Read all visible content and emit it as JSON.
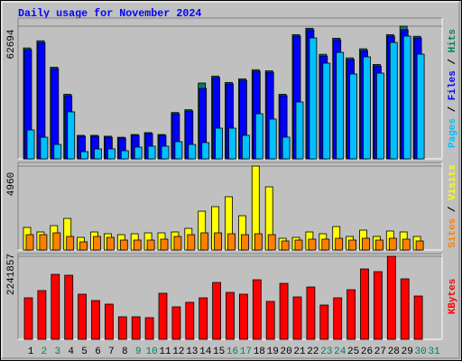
{
  "title": "Daily usage for November 2024",
  "legend_separator": " / ",
  "chart_data": [
    {
      "type": "bar",
      "ylim": [
        0,
        62694
      ],
      "yticks": [
        62694
      ],
      "grid": true,
      "series": [
        {
          "name": "Hits",
          "color": "#00805c",
          "values": [
            52400,
            55800,
            43300,
            30500,
            11100,
            11100,
            10700,
            10200,
            11500,
            12400,
            11500,
            21900,
            23200,
            35830,
            39100,
            36100,
            37800,
            42100,
            41600,
            30500,
            58700,
            61700,
            49400,
            57000,
            47700,
            52000,
            44600,
            58700,
            62694,
            57900,
            null
          ]
        },
        {
          "name": "Files",
          "color": "#0000ff",
          "values": [
            51600,
            55000,
            42650,
            29850,
            10660,
            10660,
            10240,
            9800,
            11100,
            11940,
            11100,
            21300,
            22600,
            33270,
            38400,
            35400,
            37100,
            41370,
            40900,
            29850,
            58000,
            61000,
            48600,
            56300,
            46900,
            51200,
            43900,
            58000,
            61000,
            57150,
            null
          ]
        },
        {
          "name": "Pages",
          "color": "#00c0ff",
          "values": [
            13650,
            10200,
            6800,
            22200,
            3400,
            4700,
            4700,
            3840,
            5540,
            5970,
            5970,
            8100,
            6800,
            7680,
            14500,
            14500,
            11100,
            21300,
            18770,
            10240,
            26870,
            57150,
            45200,
            50300,
            40100,
            48200,
            40500,
            55000,
            58000,
            49470,
            null
          ]
        }
      ]
    },
    {
      "type": "bar",
      "ylim": [
        0,
        4960
      ],
      "yticks": [
        4960
      ],
      "grid": true,
      "series": [
        {
          "name": "Visits",
          "color": "#ffff00",
          "values": [
            1333,
            1066,
            1440,
            1866,
            746,
            1066,
            960,
            906,
            960,
            1013,
            1013,
            1066,
            1280,
            2293,
            2560,
            3146,
            2026,
            4960,
            3733,
            693,
            746,
            1066,
            960,
            1386,
            800,
            1173,
            800,
            1120,
            1066,
            800,
            null
          ]
        },
        {
          "name": "Sites",
          "color": "#ff8000",
          "values": [
            906,
            906,
            1013,
            800,
            480,
            800,
            746,
            586,
            586,
            586,
            640,
            800,
            906,
            1013,
            1013,
            960,
            906,
            960,
            906,
            533,
            586,
            640,
            640,
            693,
            586,
            693,
            586,
            693,
            640,
            533,
            null
          ]
        }
      ]
    },
    {
      "type": "bar",
      "ylim": [
        0,
        2241857
      ],
      "yticks": [
        2241857
      ],
      "grid": true,
      "categories": [
        "1",
        "2",
        "3",
        "4",
        "5",
        "6",
        "7",
        "8",
        "9",
        "10",
        "11",
        "12",
        "13",
        "14",
        "15",
        "16",
        "17",
        "18",
        "19",
        "20",
        "21",
        "22",
        "23",
        "24",
        "25",
        "26",
        "27",
        "28",
        "29",
        "30",
        "31"
      ],
      "category_colors": [
        "#000000",
        "#00805c",
        "#00805c",
        "#000000",
        "#000000",
        "#000000",
        "#000000",
        "#000000",
        "#00805c",
        "#00805c",
        "#000000",
        "#000000",
        "#000000",
        "#000000",
        "#000000",
        "#00805c",
        "#00805c",
        "#000000",
        "#000000",
        "#000000",
        "#000000",
        "#000000",
        "#00805c",
        "#00805c",
        "#000000",
        "#000000",
        "#000000",
        "#000000",
        "#000000",
        "#00805c",
        "#00805c"
      ],
      "series": [
        {
          "name": "KBytes",
          "color": "#ff0000",
          "values": [
            1120900,
            1315900,
            1754500,
            1730100,
            1218400,
            1047800,
            950400,
            609200,
            609200,
            584800,
            1242800,
            877200,
            999100,
            1120900,
            1535200,
            1267100,
            1218400,
            1608300,
            1023500,
            1510800,
            1145300,
            1413300,
            926000,
            1120900,
            1340200,
            1900700,
            1827600,
            2241857,
            1632700,
            1169700,
            null
          ]
        }
      ]
    }
  ]
}
